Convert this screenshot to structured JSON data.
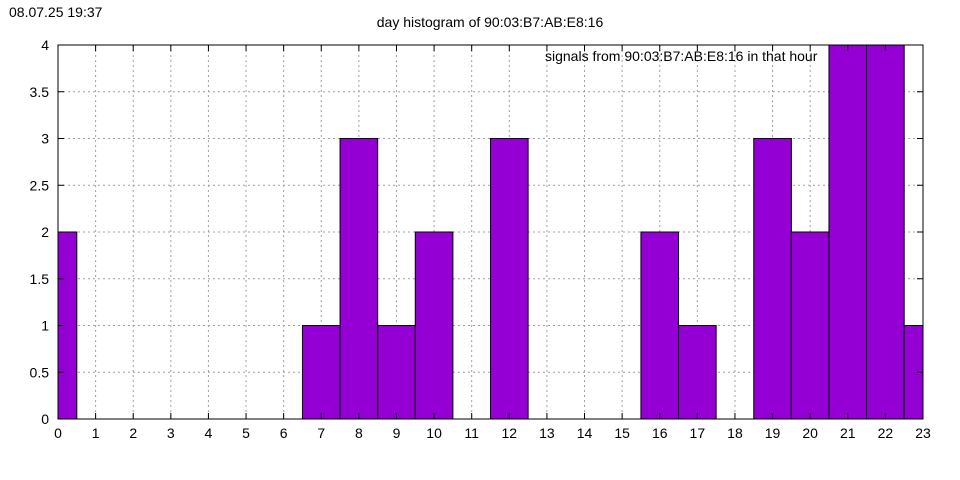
{
  "timestamp": "08.07.25 19:37",
  "chart_data": {
    "type": "bar",
    "title": "day histogram of 90:03:B7:AB:E8:16",
    "xlabel": "",
    "ylabel": "",
    "xlim": [
      0,
      23
    ],
    "ylim": [
      0,
      4
    ],
    "x_ticks": [
      0,
      1,
      2,
      3,
      4,
      5,
      6,
      7,
      8,
      9,
      10,
      11,
      12,
      13,
      14,
      15,
      16,
      17,
      18,
      19,
      20,
      21,
      22,
      23
    ],
    "y_ticks": [
      0,
      0.5,
      1,
      1.5,
      2,
      2.5,
      3,
      3.5,
      4
    ],
    "grid": true,
    "legend_position": "top-right",
    "bar_color": "#9400d3",
    "series": [
      {
        "name": "signals from 90:03:B7:AB:E8:16 in that hour",
        "x": [
          0,
          1,
          2,
          3,
          4,
          5,
          6,
          7,
          8,
          9,
          10,
          11,
          12,
          13,
          14,
          15,
          16,
          17,
          18,
          19,
          20,
          21,
          22,
          23
        ],
        "values": [
          2,
          0,
          0,
          0,
          0,
          0,
          0,
          1,
          3,
          1,
          2,
          0,
          3,
          0,
          0,
          0,
          2,
          1,
          0,
          3,
          2,
          4,
          4,
          1
        ]
      }
    ]
  }
}
